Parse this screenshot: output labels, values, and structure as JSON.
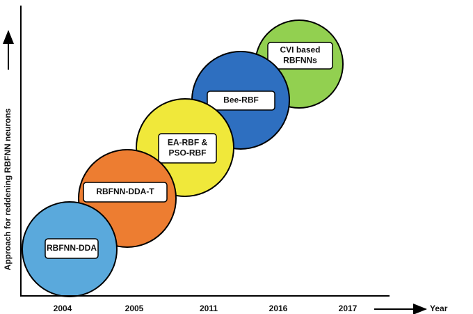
{
  "axes": {
    "y_label": "Approach for reddening RBFNN neurons",
    "x_label": "Year"
  },
  "years": [
    "2004",
    "2005",
    "2011",
    "2016",
    "2017"
  ],
  "nodes": [
    {
      "lines": [
        "RBFNN-DDA"
      ]
    },
    {
      "lines": [
        "RBFNN-DDA-T"
      ]
    },
    {
      "lines": [
        "EA-RBF &",
        "PSO-RBF"
      ]
    },
    {
      "lines": [
        "Bee-RBF"
      ]
    },
    {
      "lines": [
        "CVI based",
        "RBFNNs"
      ]
    }
  ]
}
